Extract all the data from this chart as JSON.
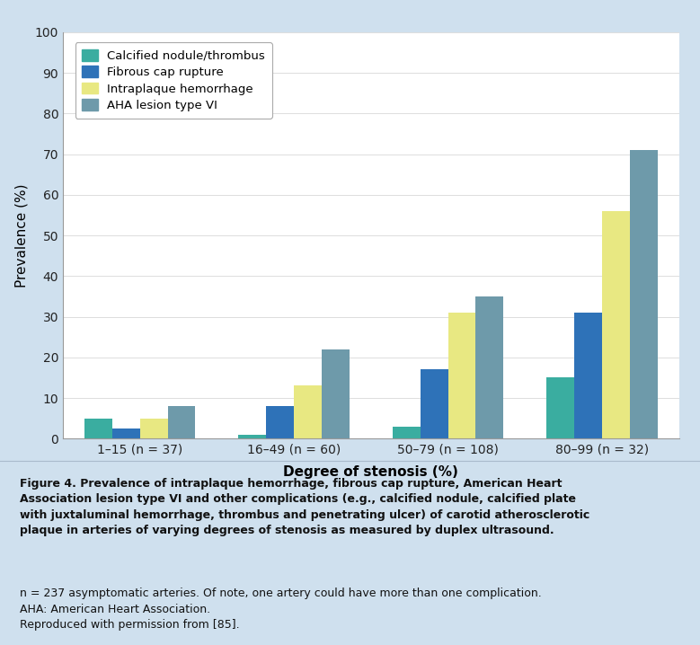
{
  "categories": [
    "1–15 (n = 37)",
    "16–49 (n = 60)",
    "50–79 (n = 108)",
    "80–99 (n = 32)"
  ],
  "series": [
    {
      "label": "Calcified nodule/thrombus",
      "color": "#3aada0",
      "values": [
        5,
        1,
        3,
        15
      ]
    },
    {
      "label": "Fibrous cap rupture",
      "color": "#2e72b8",
      "values": [
        2.5,
        8,
        17,
        31
      ]
    },
    {
      "label": "Intraplaque hemorrhage",
      "color": "#e8e882",
      "values": [
        5,
        13,
        31,
        56
      ]
    },
    {
      "label": "AHA lesion type VI",
      "color": "#6e9aaa",
      "values": [
        8,
        22,
        35,
        71
      ]
    }
  ],
  "ylabel": "Prevalence (%)",
  "xlabel": "Degree of stenosis (%)",
  "ylim": [
    0,
    100
  ],
  "yticks": [
    0,
    10,
    20,
    30,
    40,
    50,
    60,
    70,
    80,
    90,
    100
  ],
  "chart_bg": "#ffffff",
  "outer_bg": "#cfe0ee",
  "caption_bg": "#d4e5f0",
  "caption_bold": "Figure 4. Prevalence of intraplaque hemorrhage, fibrous cap rupture, American Heart\nAssociation lesion type VI and other complications (e.g., calcified nodule, calcified plate\nwith juxtaluminal hemorrhage, thrombus and penetrating ulcer) of carotid atherosclerotic\nplaque in arteries of varying degrees of stenosis as measured by duplex ultrasound.",
  "caption_normal": "n = 237 asymptomatic arteries. Of note, one artery could have more than one complication.\nAHA: American Heart Association.\nReproduced with permission from [85].",
  "fig_width": 7.79,
  "fig_height": 7.18,
  "dpi": 100
}
